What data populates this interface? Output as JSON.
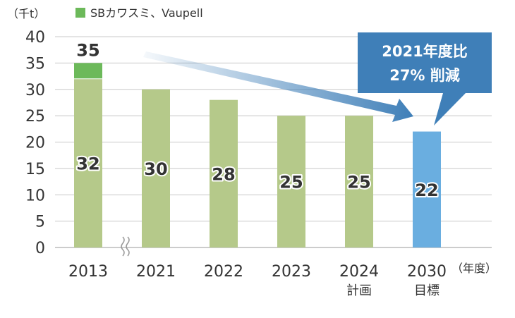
{
  "chart_data": {
    "type": "bar",
    "stacked": true,
    "categories": [
      "2013",
      "2021",
      "2022",
      "2023",
      "2024",
      "2030"
    ],
    "category_sublabels": [
      "",
      "",
      "",
      "",
      "計画",
      "目標"
    ],
    "series": [
      {
        "values": [
          32,
          30,
          28,
          25,
          25,
          22
        ]
      },
      {
        "name": "SBカワスミ、Vaupell",
        "values": [
          3,
          0,
          0,
          0,
          0,
          0
        ]
      }
    ],
    "totals": [
      35,
      null,
      null,
      null,
      null,
      null
    ],
    "ylim": [
      0,
      40
    ],
    "yticks": [
      0,
      5,
      10,
      15,
      20,
      25,
      30,
      35,
      40
    ],
    "grid": true,
    "legend_position": "top-left",
    "axis_break": "between 2013 and 2021",
    "ylabel": "（千t）",
    "x_unit": "（年度）",
    "callout": {
      "lines": [
        "2021年度比",
        "27% 削減"
      ]
    },
    "colors": {
      "base": "#b5c98a",
      "addition": "#6cb95a",
      "target": "#6aaee0",
      "callout": "#3f7fb8",
      "grid": "#c8c8c8"
    }
  }
}
